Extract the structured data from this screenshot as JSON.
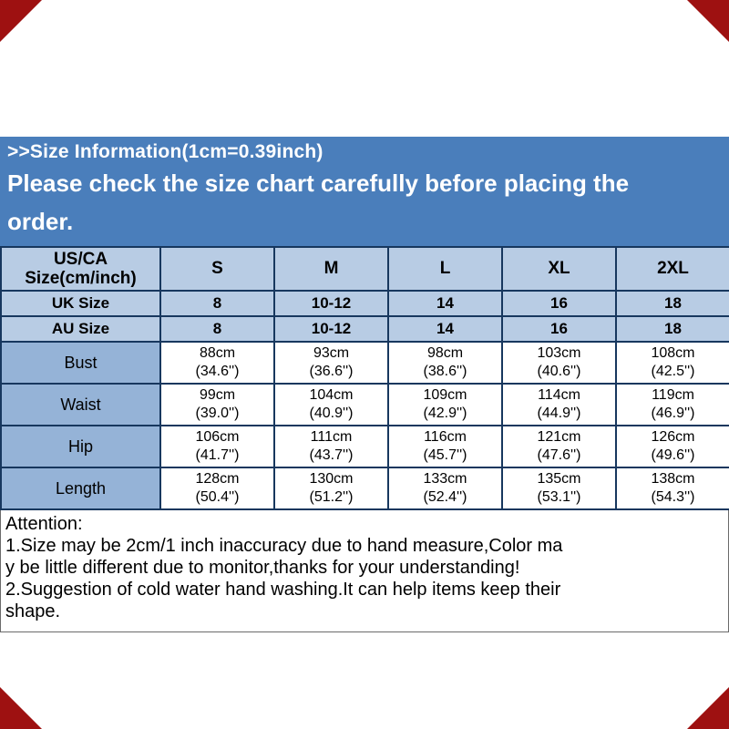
{
  "colors": {
    "header_blue": "#4a7ebb",
    "table_light_blue": "#b8cce4",
    "table_medium_blue": "#95b3d7",
    "table_border": "#17375e",
    "corner_red": "#9e1111"
  },
  "header": {
    "title": ">>Size Information(1cm=0.39inch)",
    "subtitle_lines": [
      "Please check the size chart carefully before placing the",
      "order."
    ]
  },
  "size_table": {
    "header": {
      "label_lines": [
        "US/CA",
        "Size(cm/inch)"
      ],
      "columns": [
        "S",
        "M",
        "L",
        "XL",
        "2XL"
      ]
    },
    "size_rows": [
      {
        "label": "UK Size",
        "values": [
          "8",
          "10-12",
          "14",
          "16",
          "18"
        ]
      },
      {
        "label": "AU Size",
        "values": [
          "8",
          "10-12",
          "14",
          "16",
          "18"
        ]
      }
    ],
    "measure_rows": [
      {
        "label": "Bust",
        "values": [
          [
            "88cm",
            "(34.6'')"
          ],
          [
            "93cm",
            "(36.6'')"
          ],
          [
            "98cm",
            "(38.6'')"
          ],
          [
            "103cm",
            "(40.6'')"
          ],
          [
            "108cm",
            "(42.5'')"
          ]
        ]
      },
      {
        "label": "Waist",
        "values": [
          [
            "99cm",
            "(39.0'')"
          ],
          [
            "104cm",
            "(40.9'')"
          ],
          [
            "109cm",
            "(42.9'')"
          ],
          [
            "114cm",
            "(44.9'')"
          ],
          [
            "119cm",
            "(46.9'')"
          ]
        ]
      },
      {
        "label": "Hip",
        "values": [
          [
            "106cm",
            "(41.7'')"
          ],
          [
            "111cm",
            "(43.7'')"
          ],
          [
            "116cm",
            "(45.7'')"
          ],
          [
            "121cm",
            "(47.6'')"
          ],
          [
            "126cm",
            "(49.6'')"
          ]
        ]
      },
      {
        "label": "Length",
        "values": [
          [
            "128cm",
            "(50.4'')"
          ],
          [
            "130cm",
            "(51.2'')"
          ],
          [
            "133cm",
            "(52.4'')"
          ],
          [
            "135cm",
            "(53.1'')"
          ],
          [
            "138cm",
            "(54.3'')"
          ]
        ]
      }
    ]
  },
  "attention": {
    "title": "Attention:",
    "lines": [
      "1.Size may be 2cm/1 inch inaccuracy due to hand measure,Color ma",
      "y be little different due to monitor,thanks for your understanding!",
      "2.Suggestion of cold water hand washing.It can help items keep their",
      "shape."
    ]
  }
}
